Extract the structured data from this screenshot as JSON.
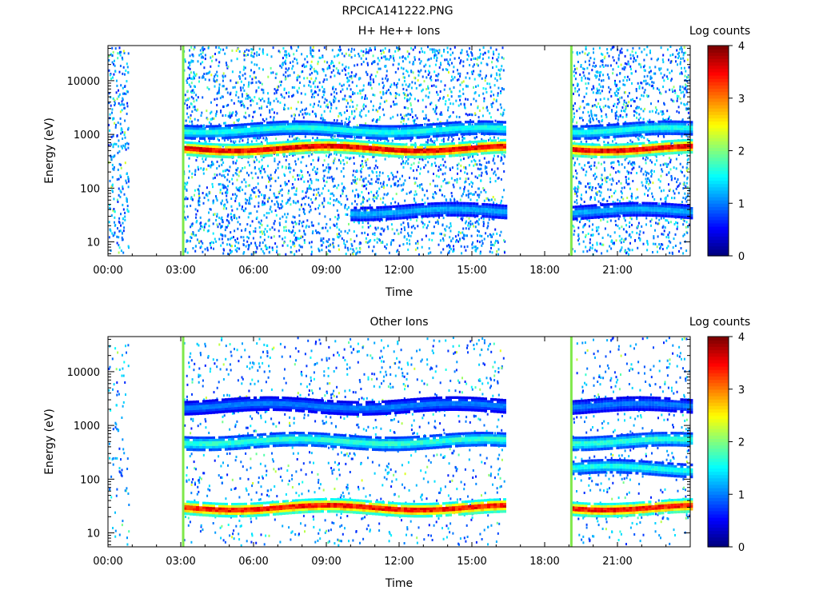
{
  "figure_title": "RPCICA141222.PNG",
  "chart_data": [
    {
      "type": "heatmap",
      "title": "H+ He++ Ions",
      "xlabel": "Time",
      "ylabel": "Energy (eV)",
      "x_ticks": [
        "00:00",
        "03:00",
        "06:00",
        "09:00",
        "12:00",
        "15:00",
        "18:00",
        "21:00"
      ],
      "x_range_hours": [
        0,
        24
      ],
      "y_scale": "log",
      "y_ticks": [
        10,
        100,
        1000,
        10000
      ],
      "y_tick_labels": [
        "10",
        "100",
        "1000",
        "10000"
      ],
      "ylim": [
        5.5,
        45000
      ],
      "colorbar": {
        "label": "Log counts",
        "range": [
          0,
          4
        ],
        "ticks": [
          "0",
          "1",
          "2",
          "3",
          "4"
        ]
      },
      "data_segments_hours": [
        [
          0.0,
          0.9
        ],
        [
          3.1,
          16.4
        ],
        [
          19.1,
          24.0
        ]
      ],
      "boundary_lines_hours": [
        3.1,
        19.1
      ],
      "bands": [
        {
          "energy_eV": 520,
          "log_counts": 3.6,
          "hours": [
            [
              3.1,
              16.4
            ],
            [
              19.1,
              24.0
            ]
          ]
        },
        {
          "energy_eV": 1150,
          "log_counts": 1.6,
          "hours": [
            [
              3.1,
              16.4
            ],
            [
              19.1,
              24.0
            ]
          ]
        },
        {
          "energy_eV": 35,
          "log_counts": 1.2,
          "hours": [
            [
              10.0,
              16.4
            ],
            [
              19.1,
              24.0
            ]
          ]
        }
      ]
    },
    {
      "type": "heatmap",
      "title": "Other Ions",
      "xlabel": "Time",
      "ylabel": "Energy (eV)",
      "x_ticks": [
        "00:00",
        "03:00",
        "06:00",
        "09:00",
        "12:00",
        "15:00",
        "18:00",
        "21:00"
      ],
      "x_range_hours": [
        0,
        24
      ],
      "y_scale": "log",
      "y_ticks": [
        10,
        100,
        1000,
        10000
      ],
      "y_tick_labels": [
        "10",
        "100",
        "1000",
        "10000"
      ],
      "ylim": [
        5.5,
        45000
      ],
      "colorbar": {
        "label": "Log counts",
        "range": [
          0,
          4
        ],
        "ticks": [
          "0",
          "1",
          "2",
          "3",
          "4"
        ]
      },
      "data_segments_hours": [
        [
          0.0,
          0.9
        ],
        [
          3.1,
          16.4
        ],
        [
          19.1,
          24.0
        ]
      ],
      "boundary_lines_hours": [
        3.1,
        19.1
      ],
      "bands": [
        {
          "energy_eV": 28,
          "log_counts": 3.5,
          "hours": [
            [
              3.1,
              16.4
            ],
            [
              19.1,
              24.0
            ]
          ]
        },
        {
          "energy_eV": 480,
          "log_counts": 1.7,
          "hours": [
            [
              3.1,
              16.4
            ],
            [
              19.1,
              24.0
            ]
          ]
        },
        {
          "energy_eV": 2200,
          "log_counts": 1.0,
          "hours": [
            [
              3.1,
              16.4
            ],
            [
              19.1,
              24.0
            ]
          ]
        },
        {
          "energy_eV": 150,
          "log_counts": 1.6,
          "hours": [
            [
              19.1,
              24.0
            ]
          ]
        }
      ]
    }
  ]
}
